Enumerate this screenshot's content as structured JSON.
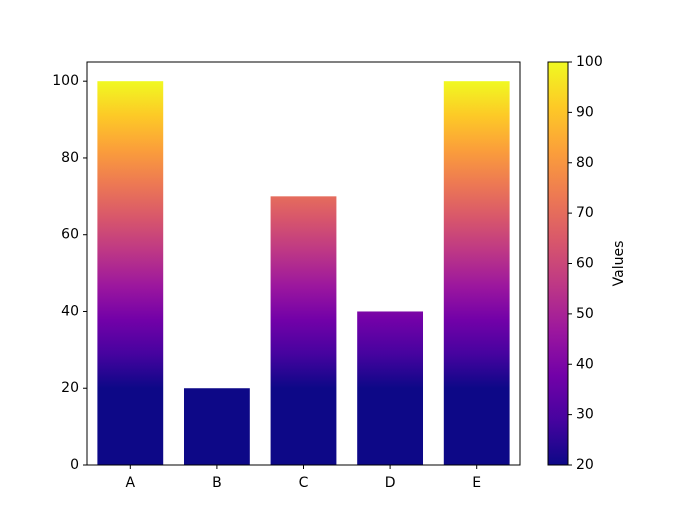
{
  "chart_data": {
    "type": "bar",
    "categories": [
      "A",
      "B",
      "C",
      "D",
      "E"
    ],
    "values": [
      100,
      20,
      70,
      40,
      100
    ],
    "ylim": [
      0,
      105
    ],
    "yticks": [
      0,
      20,
      40,
      60,
      80,
      100
    ],
    "colormap": [
      "#0d0887",
      "#46039f",
      "#7201a8",
      "#9c179e",
      "#bd3786",
      "#d8576b",
      "#ed7953",
      "#fb9f3a",
      "#fdca26",
      "#f0f921"
    ],
    "colorbar": {
      "label": "Values",
      "lim": [
        20,
        100
      ],
      "ticks": [
        20,
        30,
        40,
        50,
        60,
        70,
        80,
        90,
        100
      ]
    }
  }
}
